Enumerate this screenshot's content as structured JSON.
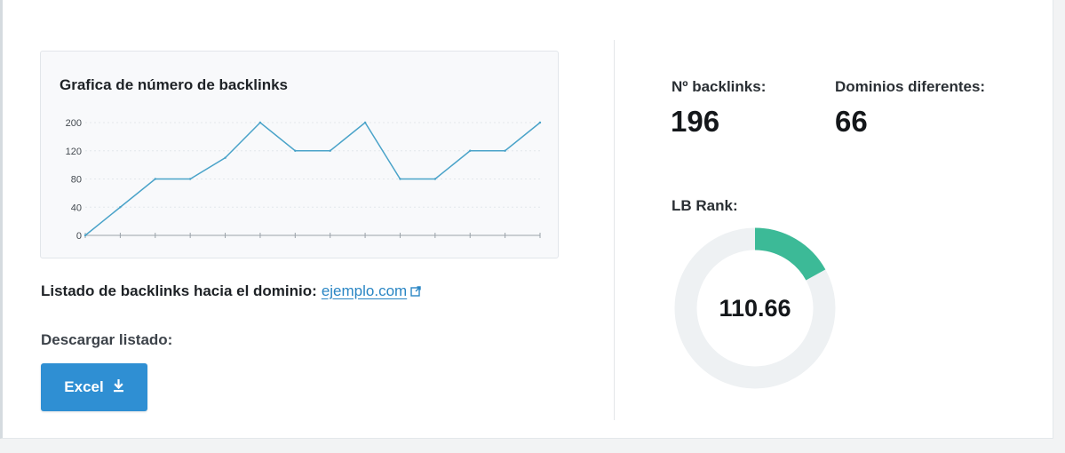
{
  "chart_card": {
    "title": "Grafica de número de backlinks"
  },
  "chart_data": {
    "type": "line",
    "title": "Grafica de número de backlinks",
    "x": [
      1,
      2,
      3,
      4,
      5,
      6,
      7,
      8,
      9,
      10,
      11,
      12,
      13,
      14
    ],
    "values": [
      0,
      40,
      80,
      80,
      110,
      200,
      120,
      120,
      200,
      80,
      80,
      120,
      120,
      200
    ],
    "yticks": [
      "0",
      "40",
      "80",
      "120",
      "200"
    ],
    "ylim": [
      0,
      200
    ],
    "xlabel": "",
    "ylabel": "",
    "grid": true,
    "line_color": "#4aa3c9"
  },
  "backlinks_list": {
    "label": "Listado de backlinks hacia el dominio:",
    "domain": "ejemplo.com",
    "link_icon": "external-link-icon"
  },
  "download": {
    "label": "Descargar listado:",
    "excel_label": "Excel",
    "excel_icon": "download-icon"
  },
  "stats": {
    "backlinks_label": "Nº backlinks:",
    "backlinks_value": "196",
    "domains_label": "Dominios diferentes:",
    "domains_value": "66",
    "rank_label": "LB Rank:",
    "rank_value": "110.66",
    "rank_fraction": 0.17
  },
  "colors": {
    "accent_button": "#2f8fd3",
    "link": "#2a86c4",
    "gauge_fill": "#3cba97",
    "gauge_track": "#eef1f3"
  }
}
